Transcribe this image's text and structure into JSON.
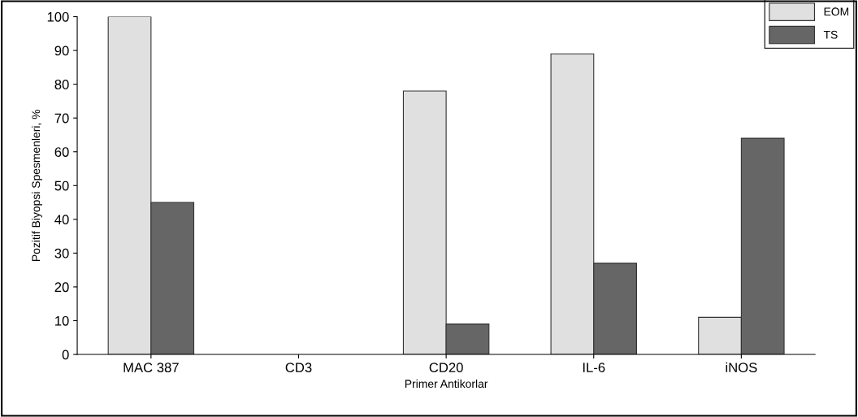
{
  "chart_data": {
    "type": "bar",
    "xlabel": "Primer Antikorlar",
    "ylabel": "Pozitif Biyopsi Spesmenleri, %",
    "categories": [
      "MAC 387",
      "CD3",
      "CD20",
      "IL-6",
      "iNOS"
    ],
    "series": [
      {
        "name": "EOM",
        "color": "#e0e0e0",
        "values": [
          100,
          0,
          78,
          89,
          11
        ]
      },
      {
        "name": "TS",
        "color": "#666666",
        "values": [
          45,
          0,
          9,
          27,
          64
        ]
      }
    ],
    "ylim": [
      0,
      100
    ],
    "yticks": [
      0,
      10,
      20,
      30,
      40,
      50,
      60,
      70,
      80,
      90,
      100
    ],
    "grid": false,
    "legend": "top right"
  }
}
